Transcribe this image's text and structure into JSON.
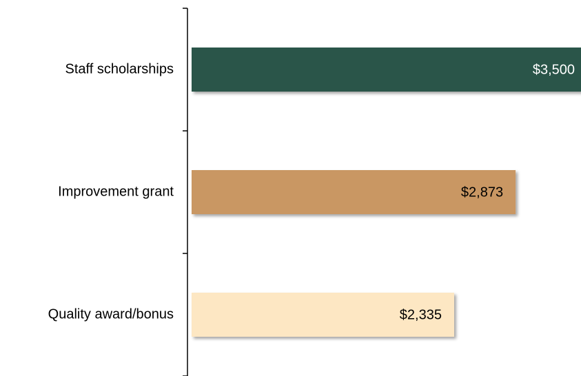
{
  "chart_data": {
    "type": "bar",
    "orientation": "horizontal",
    "categories": [
      "Staff scholarships",
      "Improvement grant",
      "Quality award/bonus"
    ],
    "values": [
      3500,
      2873,
      2335
    ],
    "value_labels": [
      "$3,500",
      "$2,873",
      "$2,335"
    ],
    "colors": [
      "#2a5449",
      "#c99764",
      "#fde7c3"
    ]
  }
}
